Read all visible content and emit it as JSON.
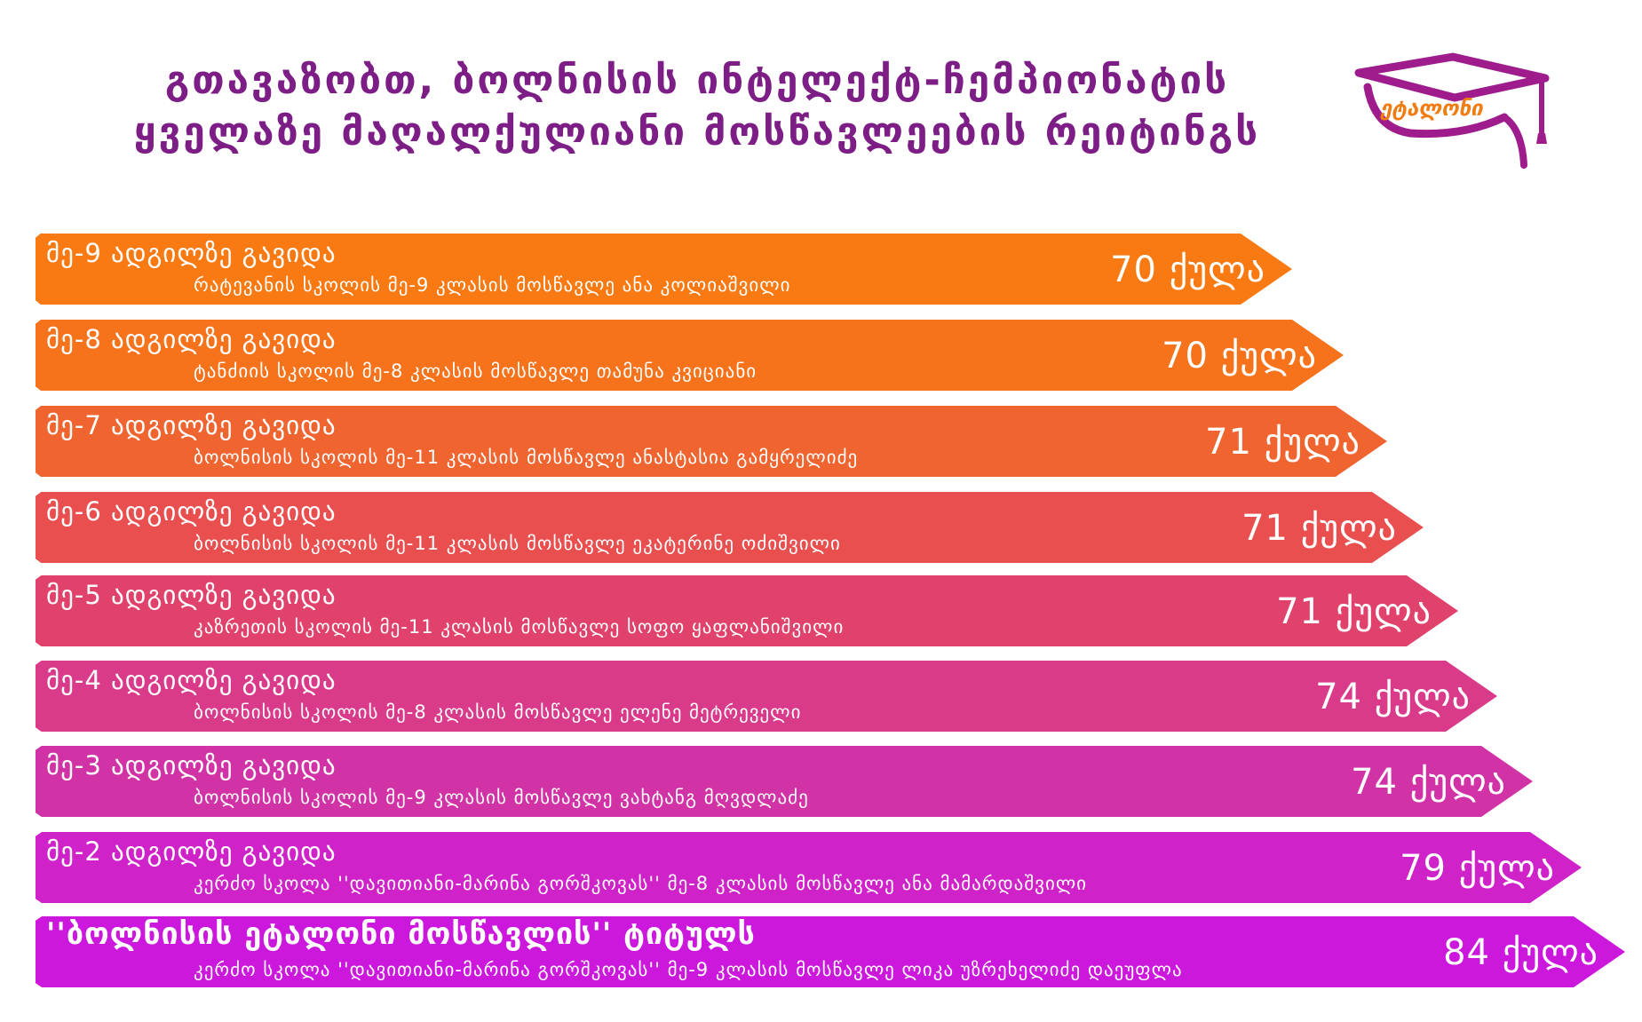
{
  "title": {
    "line1": "გთავაზობთ, ბოლნისის ინტელექტ-ჩემპიონატის",
    "line2": "ყველაზე მაღალქულიანი მოსწავლეების რეიტინგს"
  },
  "logo": {
    "text": "ეტალონი",
    "icon": "graduation-cap-icon",
    "cap_color": "#9e1c8c",
    "text_color": "#f07c12"
  },
  "colors": {
    "title": "#7d1d86"
  },
  "rankings": [
    {
      "place": "მე-9 ადგილზე გავიდა",
      "description": "რატევანის სკოლის მე-9 კლასის მოსწავლე ანა კოლიაშვილი",
      "score": "70 ქულა",
      "color": "#f97a12"
    },
    {
      "place": "მე-8 ადგილზე გავიდა",
      "description": "ტანძიის სკოლის მე-8 კლასის მოსწავლე თამუნა კვიციანი",
      "score": "70 ქულა",
      "color": "#f6731c"
    },
    {
      "place": "მე-7 ადგილზე გავიდა",
      "description": "ბოლნისის სკოლის მე-11 კლასის მოსწავლე ანასტასია გამყრელიძე",
      "score": "71 ქულა",
      "color": "#f0652f"
    },
    {
      "place": "მე-6 ადგილზე გავიდა",
      "description": "ბოლნისის სკოლის მე-11 კლასის მოსწავლე ეკატერინე ოძიშვილი",
      "score": "71 ქულა",
      "color": "#e84f4e"
    },
    {
      "place": "მე-5 ადგილზე გავიდა",
      "description": "კაზრეთის სკოლის მე-11 კლასის მოსწავლე სოფო ყაფლანიშვილი",
      "score": "71 ქულა",
      "color": "#e0426b"
    },
    {
      "place": "მე-4 ადგილზე გავიდა",
      "description": "ბოლნისის სკოლის მე-8 კლასის მოსწავლე ელენე მეტრეველი",
      "score": "74 ქულა",
      "color": "#d93a8a"
    },
    {
      "place": "მე-3 ადგილზე გავიდა",
      "description": "ბოლნისის სკოლის მე-9 კლასის მოსწავლე ვახტანგ მღვდლაძე",
      "score": "74 ქულა",
      "color": "#d133a7"
    },
    {
      "place": "მე-2 ადგილზე გავიდა",
      "description": "კერძო სკოლა ''დავითიანი-მარინა გორშკოვას'' მე-8 კლასის მოსწავლე ანა მამარდაშვილი",
      "score": "79 ქულა",
      "color": "#cf22c9"
    },
    {
      "place": "''ბოლნისის ეტალონი მოსწავლის'' ტიტულს",
      "description": "კერძო სკოლა ''დავითიანი-მარინა გორშკოვას'' მე-9 კლასის მოსწავლე ლიკა უზრეხელიძე დაეუფლა",
      "score": "84 ქულა",
      "color": "#cc17dc"
    }
  ]
}
